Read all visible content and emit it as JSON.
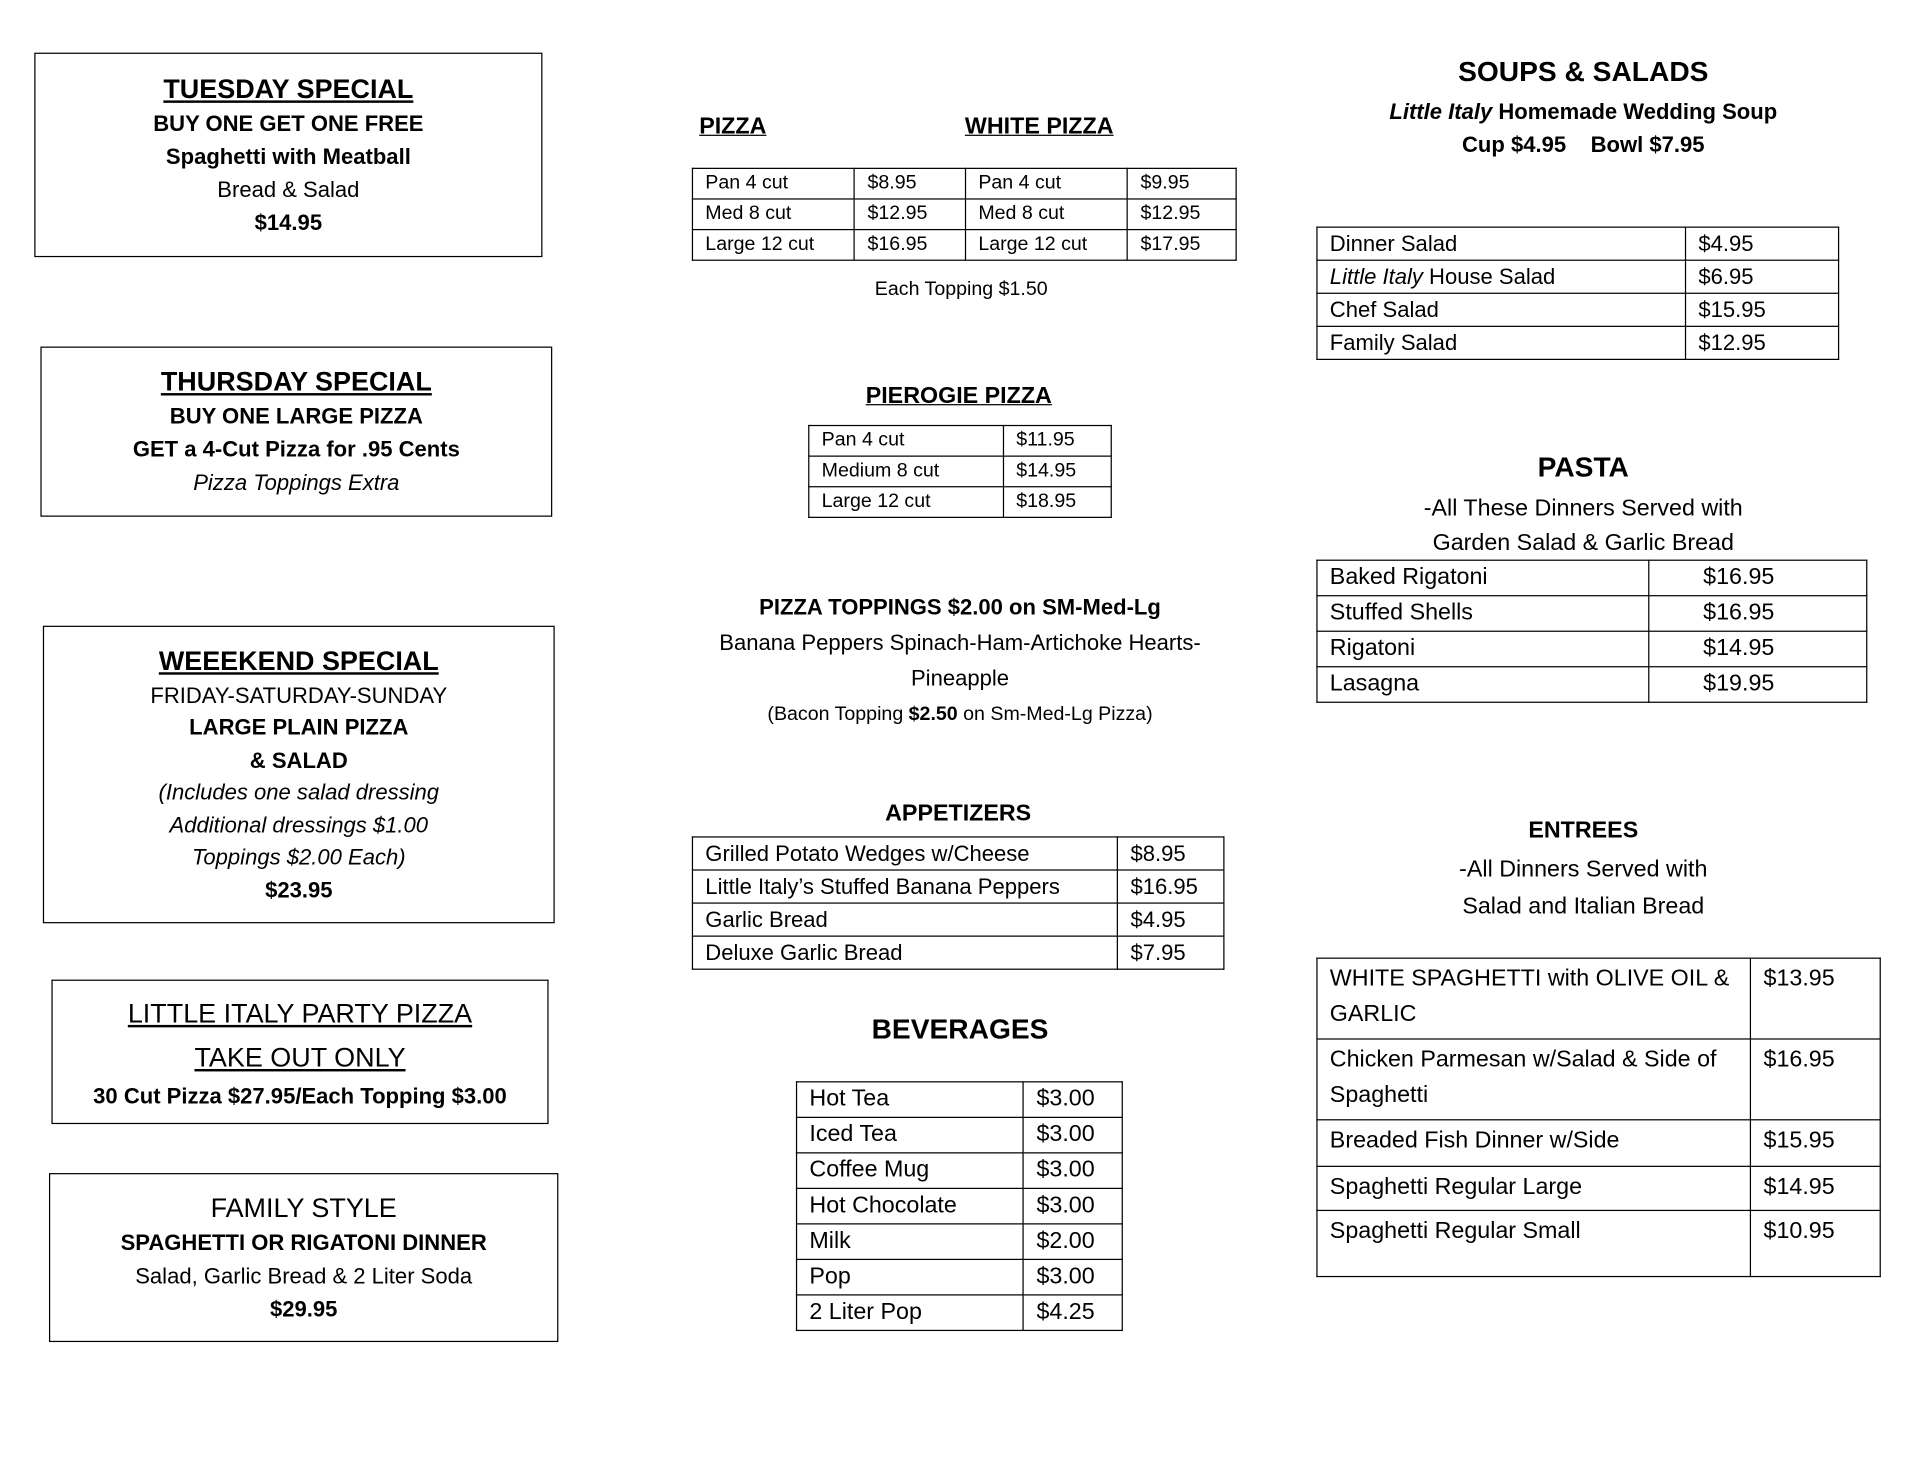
{
  "tuesday": {
    "title": "TUESDAY SPECIAL",
    "line1": "BUY ONE GET ONE FREE",
    "line2": "Spaghetti with Meatball",
    "line3": "Bread & Salad",
    "price": "$14.95"
  },
  "thursday": {
    "title": "THURSDAY SPECIAL",
    "line1": "BUY ONE LARGE PIZZA",
    "line2": "GET a 4-Cut Pizza for .95 Cents",
    "line3": "Pizza Toppings Extra"
  },
  "weekend": {
    "title": "WEEEKEND SPECIAL",
    "line1": "FRIDAY-SATURDAY-SUNDAY",
    "line2": "LARGE PLAIN PIZZA",
    "line3": "& SALAD",
    "line4": "(Includes one salad dressing",
    "line5": "Additional dressings $1.00",
    "line6": "Toppings $2.00 Each)",
    "price": "$23.95"
  },
  "party": {
    "title": "LITTLE ITALY PARTY PIZZA",
    "line1": "TAKE OUT ONLY",
    "line2": "30 Cut Pizza $27.95/Each Topping $3.00"
  },
  "family": {
    "title": "FAMILY STYLE",
    "line1": "SPAGHETTI OR RIGATONI DINNER",
    "line2": "Salad, Garlic Bread & 2 Liter Soda",
    "price": "$29.95"
  },
  "pizza": {
    "title": "PIZZA",
    "white_title": "WHITE PIZZA",
    "rows": [
      [
        "Pan 4 cut",
        "$8.95",
        "Pan 4 cut",
        "$9.95"
      ],
      [
        "Med 8 cut",
        "$12.95",
        "Med 8 cut",
        "$12.95"
      ],
      [
        "Large 12 cut",
        "$16.95",
        "Large 12 cut",
        "$17.95"
      ]
    ],
    "note": "Each Topping $1.50"
  },
  "pierogie": {
    "title": "PIEROGIE PIZZA",
    "rows": [
      [
        "Pan 4 cut",
        "$11.95"
      ],
      [
        "Medium 8 cut",
        "$14.95"
      ],
      [
        "Large 12 cut",
        "$18.95"
      ]
    ]
  },
  "toppings": {
    "title": "PIZZA TOPPINGS $2.00 on SM-Med-Lg",
    "line1": "Banana Peppers Spinach-Ham-Artichoke Hearts-",
    "line2": "Pineapple",
    "bacon_pre": "(Bacon Topping ",
    "bacon_price": "$2.50",
    "bacon_post": " on Sm-Med-Lg Pizza)"
  },
  "appetizers": {
    "title": "APPETIZERS",
    "rows": [
      [
        "Grilled Potato Wedges w/Cheese",
        "$8.95"
      ],
      [
        "Little Italy’s Stuffed Banana Peppers",
        "$16.95"
      ],
      [
        "Garlic Bread",
        "$4.95"
      ],
      [
        "Deluxe Garlic Bread",
        "$7.95"
      ]
    ]
  },
  "beverages": {
    "title": "BEVERAGES",
    "rows": [
      [
        "Hot Tea",
        "$3.00"
      ],
      [
        "Iced Tea",
        "$3.00"
      ],
      [
        "Coffee Mug",
        "$3.00"
      ],
      [
        "Hot Chocolate",
        "$3.00"
      ],
      [
        "Milk",
        "$2.00"
      ],
      [
        "Pop",
        "$3.00"
      ],
      [
        "2 Liter Pop",
        "$4.25"
      ]
    ]
  },
  "soups": {
    "title": "SOUPS & SALADS",
    "soup_brand": "Little Italy",
    "soup_name": " Homemade Wedding Soup",
    "cup": "Cup $4.95",
    "bowl": "Bowl $7.95",
    "rows": [
      [
        "Dinner Salad",
        "$4.95"
      ],
      [
        "Little Italy| House Salad",
        "$6.95"
      ],
      [
        "Chef Salad",
        "$15.95"
      ],
      [
        "Family Salad",
        "$12.95"
      ]
    ]
  },
  "pasta": {
    "title": "PASTA",
    "line1": "-All These Dinners Served with",
    "line2": "Garden Salad & Garlic Bread",
    "rows": [
      [
        "Baked Rigatoni",
        "$16.95"
      ],
      [
        "Stuffed Shells",
        "$16.95"
      ],
      [
        "Rigatoni",
        "$14.95"
      ],
      [
        "Lasagna",
        "$19.95"
      ]
    ]
  },
  "entrees": {
    "title": "ENTREES",
    "line1": "-All Dinners Served with",
    "line2": "Salad and Italian Bread",
    "rows": [
      [
        "WHITE SPAGHETTI with OLIVE OIL & GARLIC",
        "$13.95"
      ],
      [
        "Chicken Parmesan w/Salad & Side of Spaghetti",
        "$16.95"
      ],
      [
        "Breaded Fish Dinner w/Side",
        "$15.95"
      ],
      [
        "Spaghetti Regular Large",
        "$14.95"
      ],
      [
        "Spaghetti Regular Small",
        "$10.95"
      ]
    ]
  }
}
